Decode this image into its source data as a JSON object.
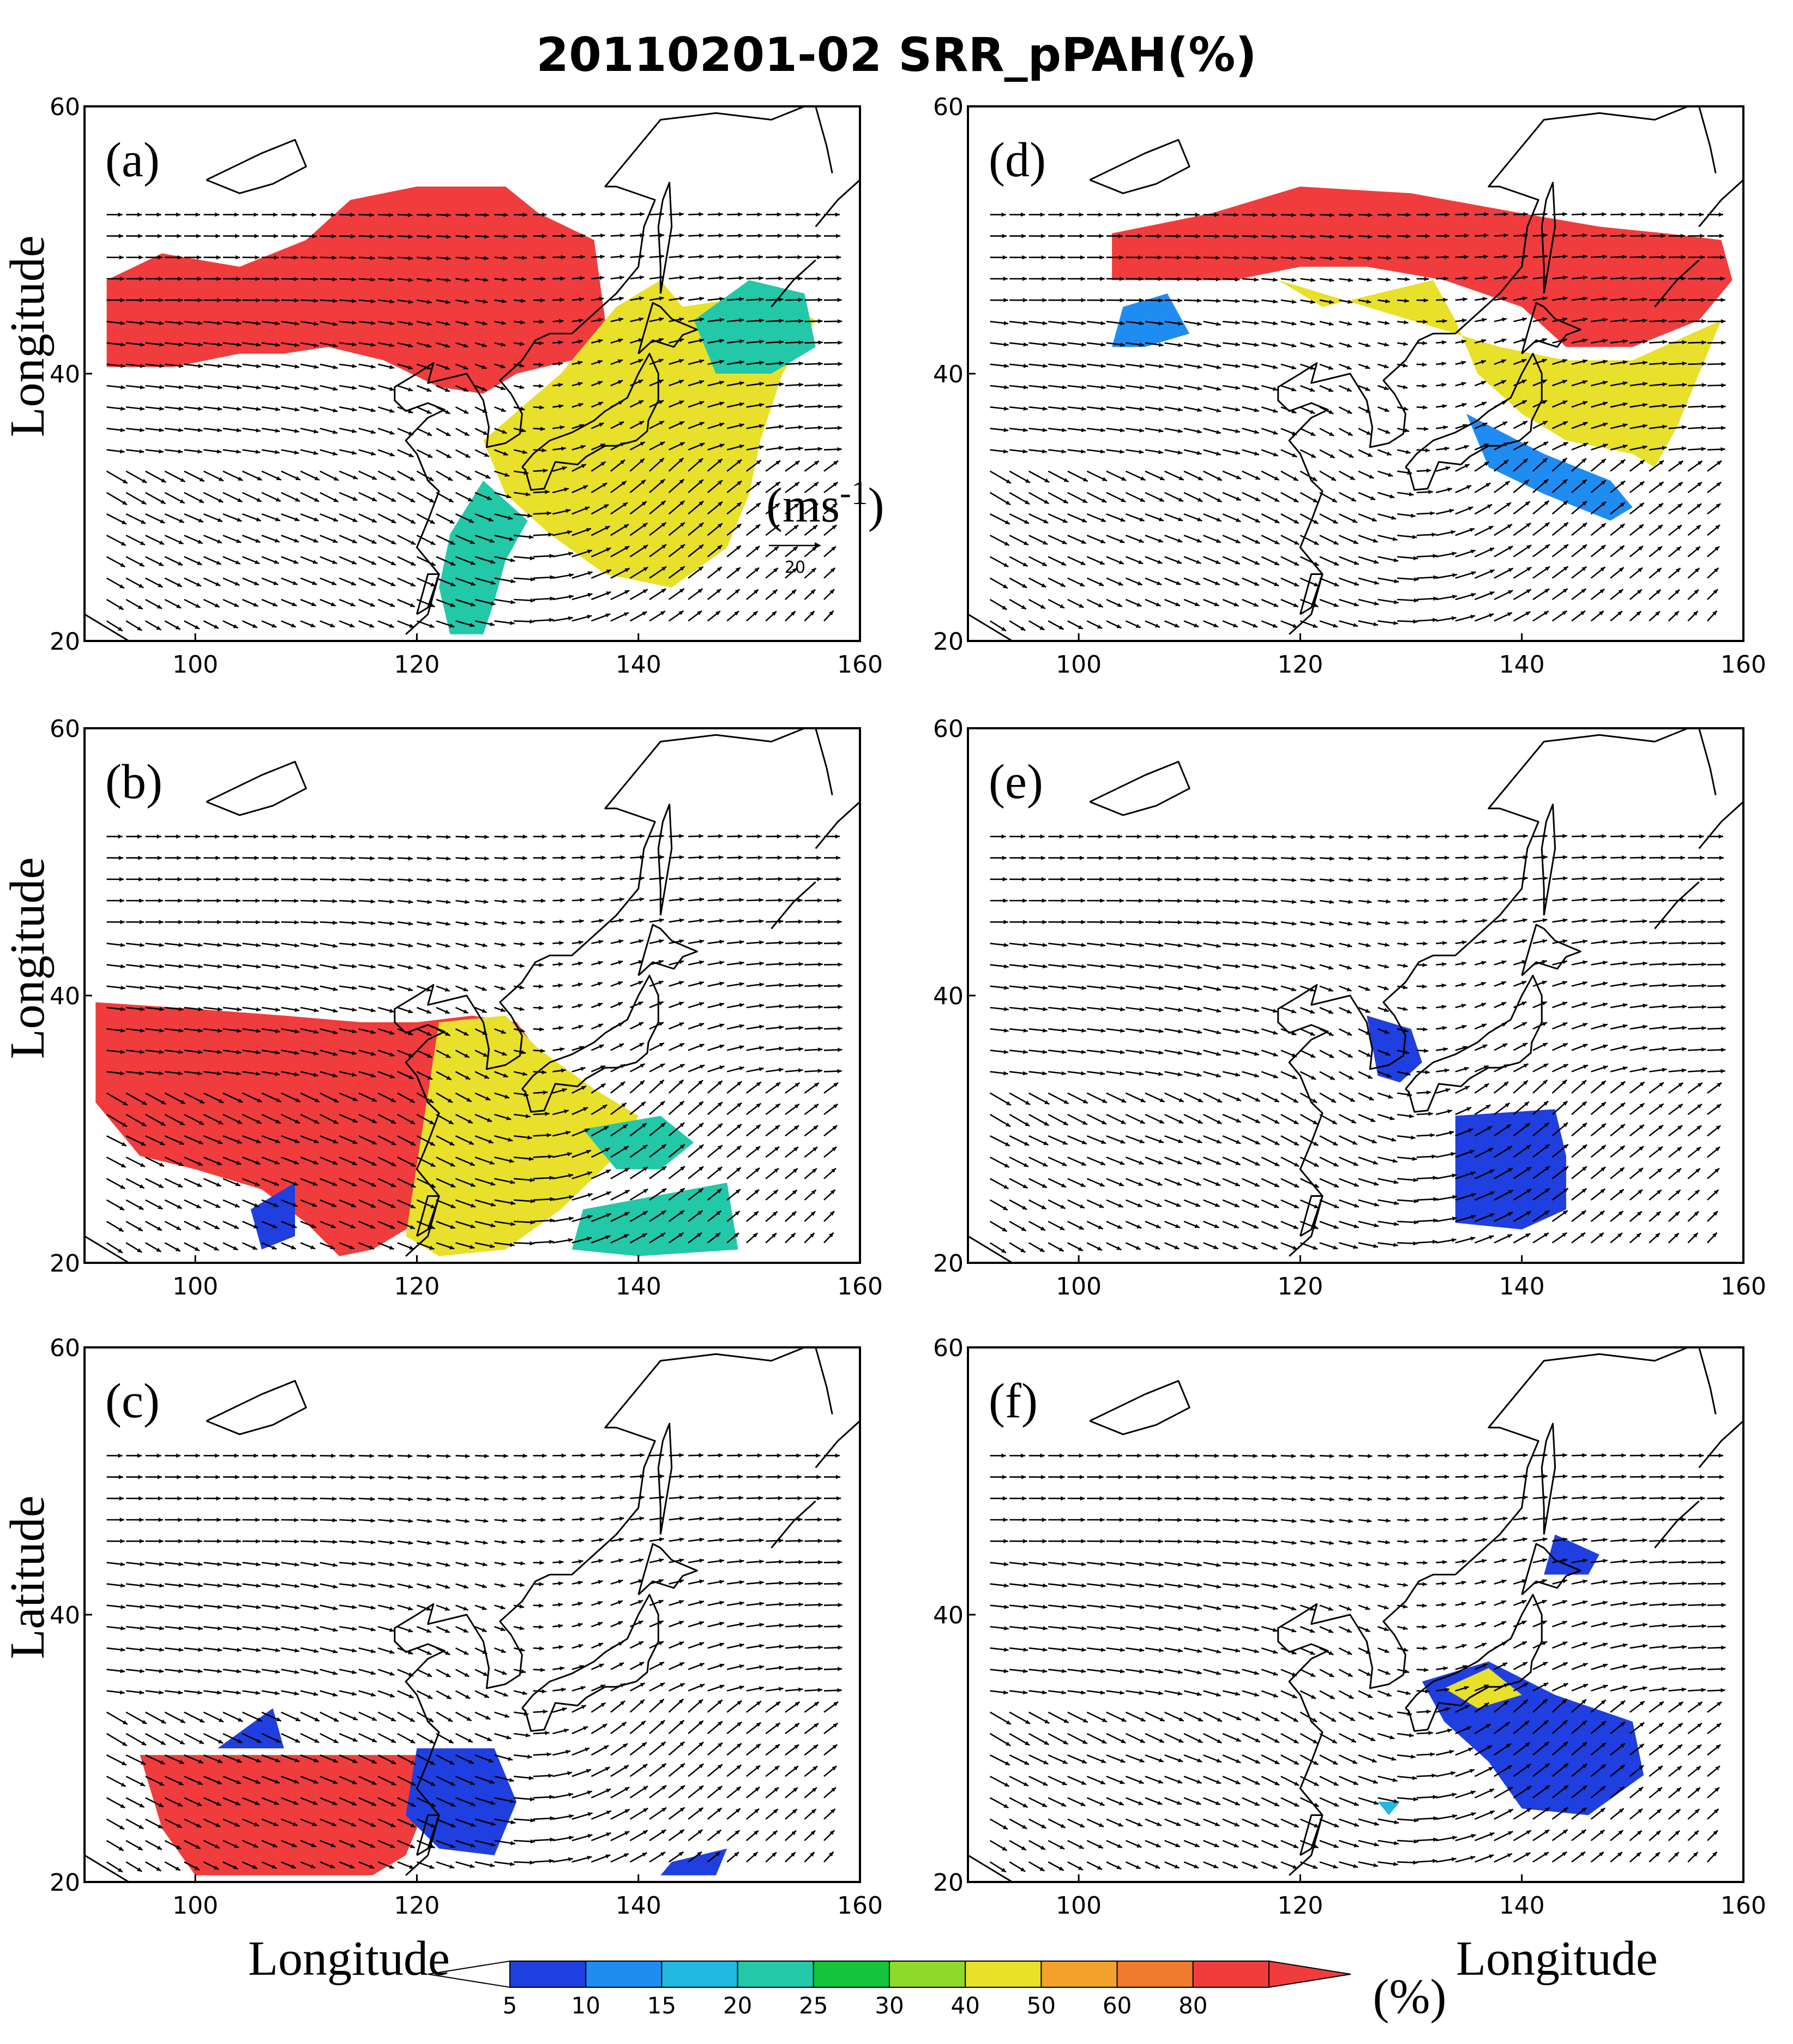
{
  "figure": {
    "title": "20110201-02 SRR_pPAH(%)",
    "unit": "(%)",
    "x_axis_label": "Longitude"
  },
  "chart_data": {
    "type": "heatmap",
    "title": "20110201-02 SRR_pPAH(%)",
    "xlim": [
      90,
      160
    ],
    "ylim": [
      20,
      60
    ],
    "x_ticks": [
      100,
      120,
      140,
      160
    ],
    "y_ticks": [
      20,
      40,
      60
    ],
    "x_tick_labels": [
      "100",
      "120",
      "140",
      "160"
    ],
    "y_tick_labels": [
      "20",
      "40",
      "60"
    ],
    "colorbar": {
      "levels": [
        5,
        10,
        15,
        20,
        25,
        30,
        40,
        50,
        60,
        80
      ],
      "level_labels": [
        "5",
        "10",
        "15",
        "20",
        "25",
        "30",
        "40",
        "50",
        "60",
        "80"
      ],
      "colors": [
        "#1f3fe0",
        "#1f8cf2",
        "#22b8e0",
        "#22c8a8",
        "#14c43a",
        "#8fd92a",
        "#e8e02a",
        "#f2a22a",
        "#f07a2e",
        "#f03c3c"
      ],
      "under_color": "#ffffff",
      "over_color": "#f03c3c",
      "unit": "(%)"
    },
    "wind_reference": {
      "unit_label": "(ms",
      "unit_exponent": "-1",
      "unit_close": ")",
      "value_label": "20"
    },
    "coastline_color": "#000000",
    "panels": [
      {
        "id": "a",
        "label": "(a)",
        "ylabel": "Longitude",
        "xlabel": "",
        "regions": [
          {
            "value": 80,
            "points": [
              [
                92,
                47
              ],
              [
                97,
                49
              ],
              [
                104,
                48
              ],
              [
                110,
                50
              ],
              [
                114,
                53
              ],
              [
                120,
                54
              ],
              [
                128,
                54
              ],
              [
                131,
                52
              ],
              [
                136,
                50
              ],
              [
                137,
                44
              ],
              [
                134,
                41
              ],
              [
                129,
                40
              ],
              [
                126,
                38.5
              ],
              [
                122,
                39
              ],
              [
                117,
                41
              ],
              [
                112,
                42
              ],
              [
                108,
                41.5
              ],
              [
                104,
                41.5
              ],
              [
                98,
                40.5
              ],
              [
                92,
                40.5
              ]
            ]
          },
          {
            "value": 40,
            "points": [
              [
                133,
                40
              ],
              [
                138,
                45
              ],
              [
                142,
                47
              ],
              [
                144,
                45
              ],
              [
                152,
                46
              ],
              [
                156,
                44
              ],
              [
                153,
                40
              ],
              [
                151,
                35
              ],
              [
                150,
                31
              ],
              [
                148,
                27
              ],
              [
                143,
                24
              ],
              [
                137,
                25
              ],
              [
                132,
                28
              ],
              [
                128,
                31
              ],
              [
                126,
                35
              ]
            ]
          },
          {
            "value": 20,
            "points": [
              [
                126,
                32
              ],
              [
                130,
                29
              ],
              [
                128,
                26
              ],
              [
                127,
                23
              ],
              [
                126,
                20.5
              ],
              [
                123,
                20.5
              ],
              [
                122,
                24
              ],
              [
                123,
                28
              ]
            ]
          },
          {
            "value": 20,
            "points": [
              [
                145,
                44
              ],
              [
                150,
                47
              ],
              [
                155,
                46
              ],
              [
                156,
                42
              ],
              [
                152,
                40
              ],
              [
                147,
                40
              ]
            ]
          }
        ]
      },
      {
        "id": "b",
        "label": "(b)",
        "ylabel": "Longitude",
        "xlabel": "",
        "regions": [
          {
            "value": 80,
            "points": [
              [
                91,
                39.5
              ],
              [
                100,
                39
              ],
              [
                108,
                38.5
              ],
              [
                115,
                38
              ],
              [
                120,
                38
              ],
              [
                125,
                38.5
              ],
              [
                129,
                38
              ],
              [
                133,
                33.5
              ],
              [
                138,
                32
              ],
              [
                140,
                30
              ],
              [
                135,
                29
              ],
              [
                131,
                27
              ],
              [
                125,
                25
              ],
              [
                120,
                23
              ],
              [
                116,
                21
              ],
              [
                113,
                20.5
              ],
              [
                110,
                23
              ],
              [
                106,
                25.5
              ],
              [
                100,
                27
              ],
              [
                95,
                28
              ],
              [
                91,
                32
              ]
            ]
          },
          {
            "value": 40,
            "points": [
              [
                122,
                38
              ],
              [
                128,
                38.5
              ],
              [
                131,
                36
              ],
              [
                136,
                33
              ],
              [
                140,
                31
              ],
              [
                138,
                28
              ],
              [
                133,
                24
              ],
              [
                128,
                21
              ],
              [
                122,
                20.5
              ],
              [
                119,
                22
              ]
            ]
          },
          {
            "value": 20,
            "points": [
              [
                135,
                30
              ],
              [
                142,
                31
              ],
              [
                145,
                29
              ],
              [
                142,
                27
              ],
              [
                138,
                27
              ]
            ]
          },
          {
            "value": 20,
            "points": [
              [
                135,
                24
              ],
              [
                148,
                26
              ],
              [
                149,
                21
              ],
              [
                140,
                20.5
              ],
              [
                134,
                21
              ]
            ]
          },
          {
            "value": 5,
            "points": [
              [
                105,
                24
              ],
              [
                109,
                26
              ],
              [
                109,
                22
              ],
              [
                106,
                21
              ]
            ]
          }
        ]
      },
      {
        "id": "c",
        "label": "(c)",
        "ylabel": "Latitude",
        "xlabel": "Longitude",
        "regions": [
          {
            "value": 80,
            "points": [
              [
                95,
                29.5
              ],
              [
                110,
                29.5
              ],
              [
                120,
                29.5
              ],
              [
                121,
                26
              ],
              [
                119,
                22
              ],
              [
                116,
                20.5
              ],
              [
                100,
                20.5
              ],
              [
                97,
                24
              ]
            ]
          },
          {
            "value": 5,
            "points": [
              [
                120,
                30
              ],
              [
                127,
                30
              ],
              [
                129,
                26
              ],
              [
                127,
                22
              ],
              [
                122,
                22.5
              ],
              [
                119,
                25
              ]
            ]
          },
          {
            "value": 5,
            "points": [
              [
                143,
                21.5
              ],
              [
                148,
                22.5
              ],
              [
                147,
                20.5
              ],
              [
                142,
                20.5
              ]
            ]
          },
          {
            "value": 5,
            "points": [
              [
                102,
                30
              ],
              [
                107,
                33
              ],
              [
                108,
                30
              ]
            ]
          }
        ]
      },
      {
        "id": "d",
        "label": "(d)",
        "ylabel": "",
        "xlabel": "",
        "regions": [
          {
            "value": 80,
            "points": [
              [
                103,
                50.5
              ],
              [
                112,
                52
              ],
              [
                120,
                54
              ],
              [
                130,
                53.5
              ],
              [
                140,
                52
              ],
              [
                147,
                51
              ],
              [
                153,
                50.5
              ],
              [
                158,
                50
              ],
              [
                159,
                47
              ],
              [
                156,
                44
              ],
              [
                150,
                42
              ],
              [
                144,
                42
              ],
              [
                140,
                45
              ],
              [
                133,
                47
              ],
              [
                126,
                48
              ],
              [
                120,
                48
              ],
              [
                114,
                47
              ],
              [
                108,
                47
              ],
              [
                103,
                47
              ]
            ]
          },
          {
            "value": 40,
            "points": [
              [
                118,
                47
              ],
              [
                122,
                45
              ],
              [
                132,
                47
              ],
              [
                134,
                44
              ],
              [
                136,
                40
              ],
              [
                140,
                37
              ],
              [
                144,
                35
              ],
              [
                150,
                34
              ],
              [
                152,
                33
              ],
              [
                154,
                36
              ],
              [
                156,
                40
              ],
              [
                158,
                44
              ],
              [
                150,
                41
              ],
              [
                144,
                41
              ],
              [
                138,
                42
              ]
            ]
          },
          {
            "value": 10,
            "points": [
              [
                104,
                45
              ],
              [
                108,
                46
              ],
              [
                110,
                43
              ],
              [
                106,
                42
              ],
              [
                103,
                42
              ]
            ]
          },
          {
            "value": 10,
            "points": [
              [
                135,
                37
              ],
              [
                142,
                34
              ],
              [
                148,
                32
              ],
              [
                150,
                30
              ],
              [
                148,
                29
              ],
              [
                142,
                31
              ],
              [
                137,
                33
              ]
            ]
          }
        ]
      },
      {
        "id": "e",
        "label": "(e)",
        "ylabel": "",
        "xlabel": "",
        "regions": [
          {
            "value": 5,
            "points": [
              [
                126,
                38.5
              ],
              [
                130,
                37.5
              ],
              [
                131,
                35
              ],
              [
                129,
                33.5
              ],
              [
                127,
                34
              ]
            ]
          },
          {
            "value": 5,
            "points": [
              [
                134,
                31
              ],
              [
                143,
                31.5
              ],
              [
                144,
                28
              ],
              [
                144,
                24
              ],
              [
                140,
                22.5
              ],
              [
                134,
                23
              ]
            ]
          }
        ]
      },
      {
        "id": "f",
        "label": "(f)",
        "ylabel": "",
        "xlabel": "Longitude",
        "regions": [
          {
            "value": 5,
            "points": [
              [
                143,
                46
              ],
              [
                147,
                44.5
              ],
              [
                146,
                43
              ],
              [
                142,
                43
              ]
            ]
          },
          {
            "value": 5,
            "points": [
              [
                131,
                35
              ],
              [
                137,
                36.5
              ],
              [
                143,
                34
              ],
              [
                150,
                32
              ],
              [
                151,
                28
              ],
              [
                146,
                25
              ],
              [
                140,
                25.5
              ],
              [
                137,
                29
              ],
              [
                133,
                32
              ]
            ]
          },
          {
            "value": 40,
            "points": [
              [
                133,
                34.5
              ],
              [
                137,
                36
              ],
              [
                140,
                34
              ],
              [
                136,
                33
              ]
            ]
          },
          {
            "value": 15,
            "points": [
              [
                127,
                26
              ],
              [
                129,
                26
              ],
              [
                128,
                25
              ]
            ]
          }
        ]
      }
    ]
  }
}
